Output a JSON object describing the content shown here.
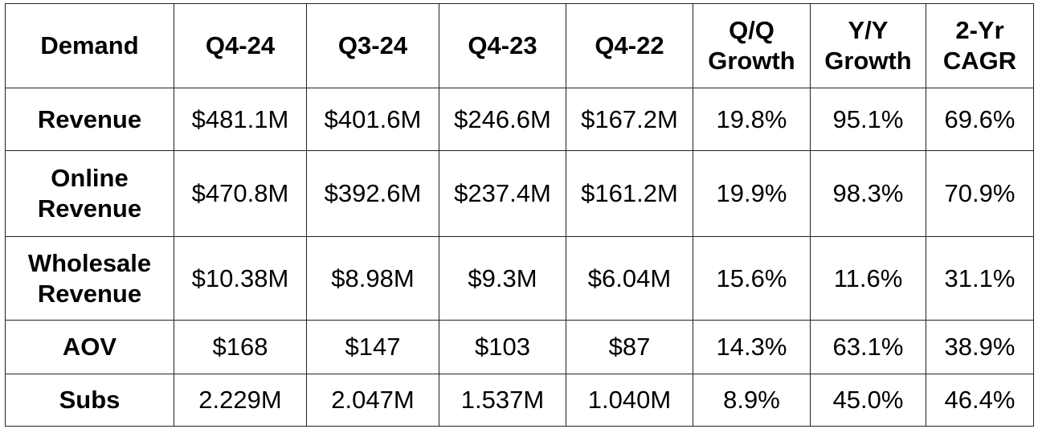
{
  "table": {
    "headers": [
      "Demand",
      "Q4-24",
      "Q3-24",
      "Q4-23",
      "Q4-22",
      "Q/Q\nGrowth",
      "Y/Y\nGrowth",
      "2-Yr\nCAGR"
    ],
    "rows": [
      {
        "label": "Revenue",
        "values": [
          "$481.1M",
          "$401.6M",
          "$246.6M",
          "$167.2M",
          "19.8%",
          "95.1%",
          "69.6%"
        ]
      },
      {
        "label": "Online\nRevenue",
        "values": [
          "$470.8M",
          "$392.6M",
          "$237.4M",
          "$161.2M",
          "19.9%",
          "98.3%",
          "70.9%"
        ]
      },
      {
        "label": "Wholesale\nRevenue",
        "values": [
          "$10.38M",
          "$8.98M",
          "$9.3M",
          "$6.04M",
          "15.6%",
          "11.6%",
          "31.1%"
        ]
      },
      {
        "label": "AOV",
        "values": [
          "$168",
          "$147",
          "$103",
          "$87",
          "14.3%",
          "63.1%",
          "38.9%"
        ]
      },
      {
        "label": "Subs",
        "values": [
          "2.229M",
          "2.047M",
          "1.537M",
          "1.040M",
          "8.9%",
          "45.0%",
          "46.4%"
        ]
      }
    ]
  }
}
